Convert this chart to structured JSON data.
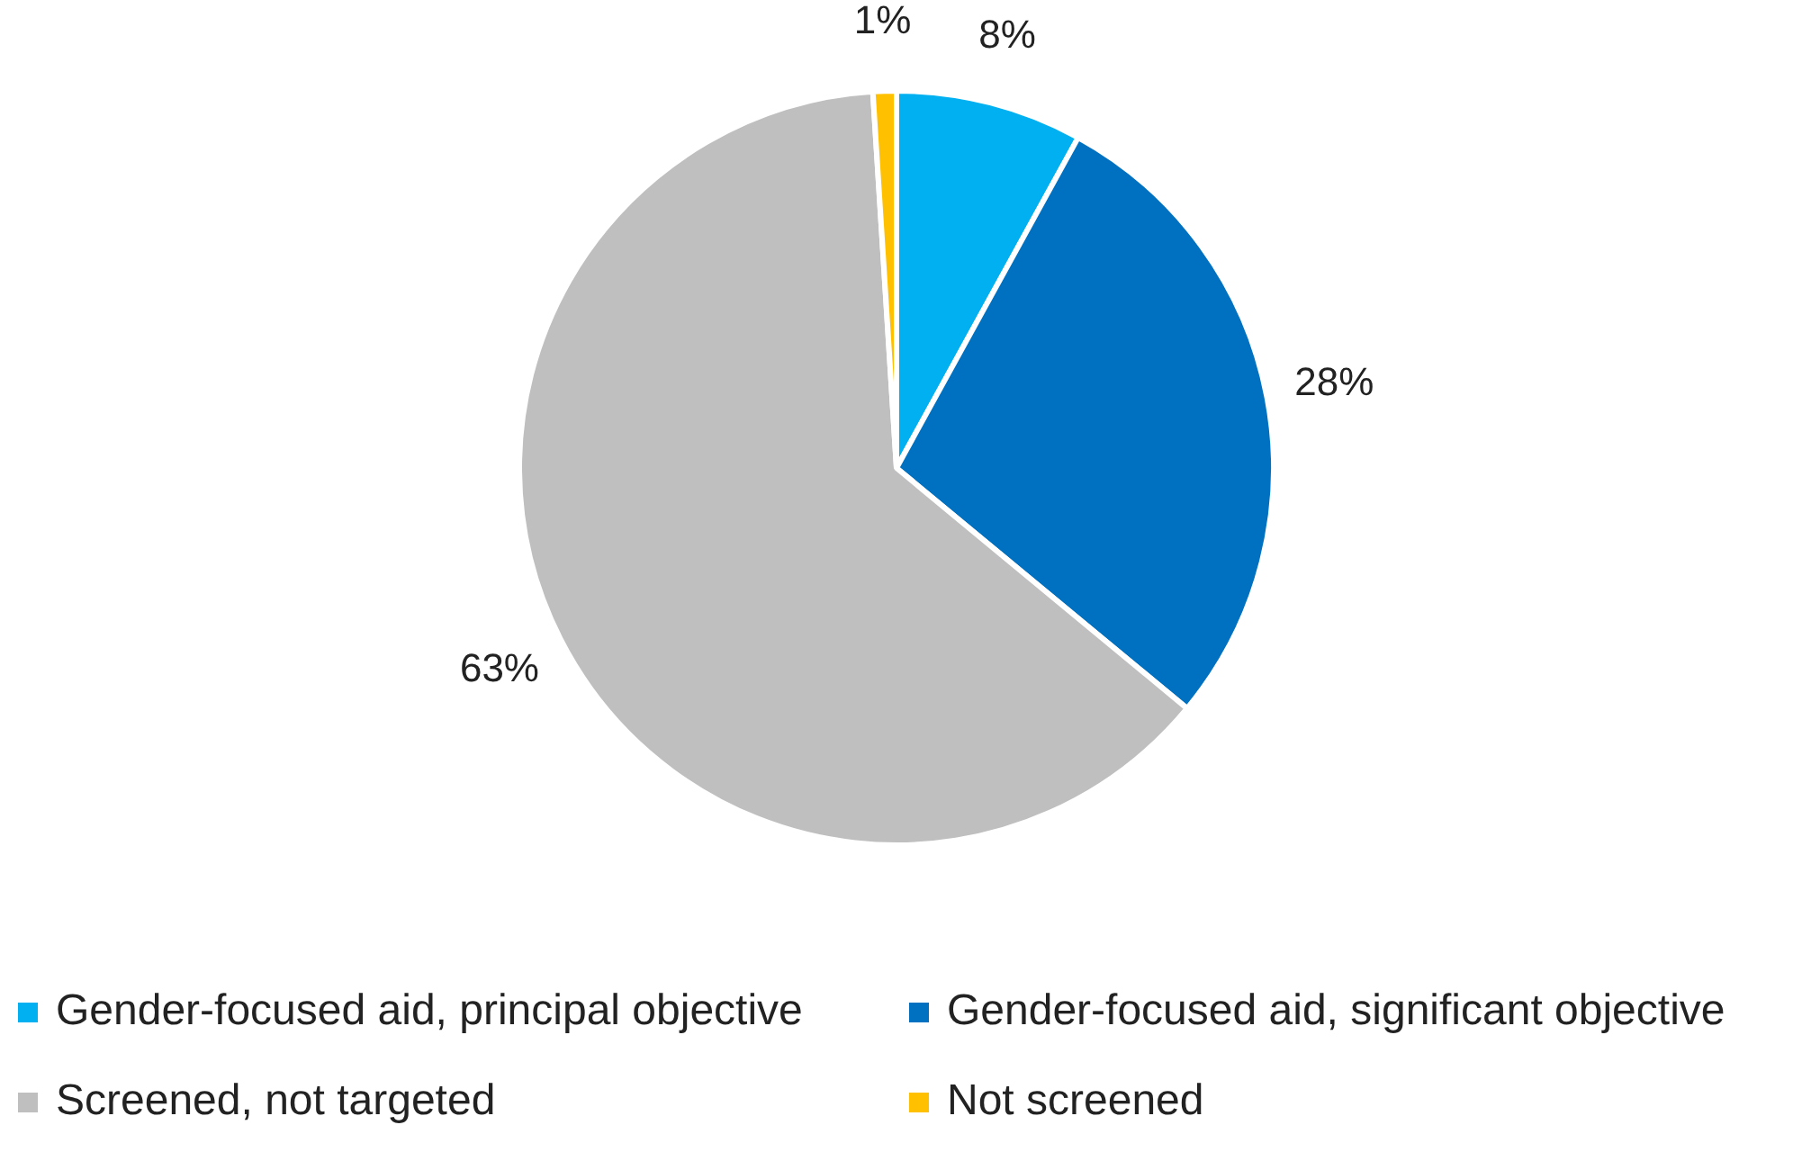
{
  "chart_data": {
    "type": "pie",
    "categories": [
      "Gender-focused aid, principal objective",
      "Gender-focused aid, significant objective",
      "Screened, not targeted",
      "Not screened"
    ],
    "values": [
      8,
      28,
      63,
      1
    ],
    "value_labels": [
      "8%",
      "28%",
      "63%",
      "1%"
    ],
    "colors": [
      "#00b0f0",
      "#0070c0",
      "#bfbfbf",
      "#ffc000"
    ],
    "legend": "bottom"
  }
}
